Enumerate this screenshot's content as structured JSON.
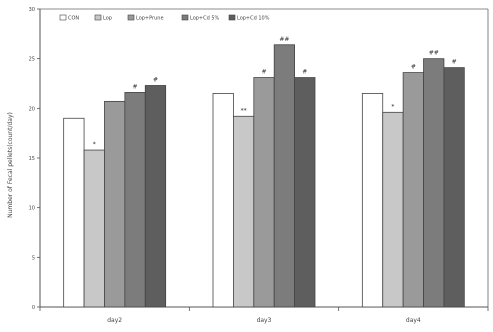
{
  "chart_data": {
    "type": "bar",
    "ylabel": "Number of Fecal pellets(count/day)",
    "ylim": [
      0,
      30
    ],
    "yticks": [
      0,
      5,
      10,
      15,
      20,
      25,
      30
    ],
    "categories": [
      "day2",
      "day3",
      "day4"
    ],
    "legend_position": "top-left",
    "series": [
      {
        "name": "CON",
        "color": "#ffffff",
        "values": [
          19.0,
          21.5,
          21.5
        ],
        "annotations": [
          "",
          "",
          ""
        ]
      },
      {
        "name": "Lop",
        "color": "#c8c8c8",
        "values": [
          15.8,
          19.2,
          19.6
        ],
        "annotations": [
          "*",
          "**",
          "*"
        ]
      },
      {
        "name": "Lop+Prune",
        "color": "#9a9a9a",
        "values": [
          20.7,
          23.1,
          23.6
        ],
        "annotations": [
          "",
          "#",
          "#"
        ]
      },
      {
        "name": "Lop+Cd 5%",
        "color": "#7c7c7c",
        "values": [
          21.6,
          26.4,
          25.0
        ],
        "annotations": [
          "#",
          "##",
          "##"
        ]
      },
      {
        "name": "Lop+Cd 10%",
        "color": "#5e5e5e",
        "values": [
          22.3,
          23.1,
          24.1
        ],
        "annotations": [
          "#",
          "#",
          "#"
        ]
      }
    ]
  }
}
